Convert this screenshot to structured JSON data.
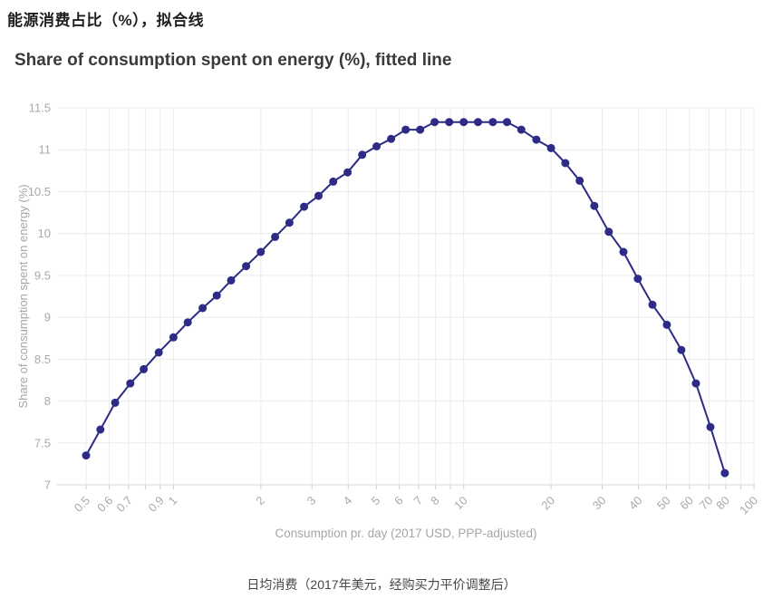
{
  "header": {
    "title_cn": "能源消费占比（%），拟合线",
    "title_en": "Share of consumption spent on energy (%), fitted line"
  },
  "footer": {
    "caption_cn": "日均消费（2017年美元，经购买力平价调整后）"
  },
  "chart_data": {
    "type": "line",
    "title": "Share of consumption spent on energy (%), fitted line",
    "xlabel": "Consumption pr. day (2017 USD, PPP-adjusted)",
    "ylabel": "Share of consumption spent on energy (%)",
    "x_scale": "log",
    "xlim": [
      0.5,
      100
    ],
    "ylim": [
      7,
      11.5
    ],
    "grid": true,
    "legend": "none",
    "marker": "circle",
    "x": [
      0.5,
      0.56,
      0.63,
      0.71,
      0.79,
      0.89,
      1,
      1.12,
      1.26,
      1.41,
      1.58,
      1.78,
      2,
      2.24,
      2.51,
      2.82,
      3.16,
      3.55,
      3.98,
      4.47,
      5.01,
      5.62,
      6.31,
      7.08,
      7.94,
      8.91,
      10,
      11.2,
      12.6,
      14.1,
      15.8,
      17.8,
      20,
      22.4,
      25.1,
      28.2,
      31.6,
      35.5,
      39.8,
      44.7,
      50.1,
      56.2,
      63.1,
      70.8,
      79.4
    ],
    "y": [
      7.35,
      7.66,
      7.98,
      8.21,
      8.38,
      8.58,
      8.76,
      8.94,
      9.11,
      9.26,
      9.44,
      9.61,
      9.78,
      9.96,
      10.13,
      10.32,
      10.45,
      10.62,
      10.73,
      10.94,
      11.04,
      11.13,
      11.24,
      11.24,
      11.33,
      11.33,
      11.33,
      11.33,
      11.33,
      11.33,
      11.24,
      11.12,
      11.02,
      10.84,
      10.63,
      10.33,
      10.02,
      9.78,
      9.46,
      9.15,
      8.91,
      8.61,
      8.21,
      7.69,
      7.14
    ],
    "x_ticks_labeled": [
      "0.5",
      "0.6",
      "0.7",
      "0.9",
      "1",
      "2",
      "3",
      "4",
      "5",
      "6",
      "7",
      "8",
      "10",
      "20",
      "30",
      "40",
      "50",
      "60",
      "70",
      "80",
      "100"
    ],
    "x_gridlines": [
      0.5,
      0.6,
      0.7,
      0.8,
      0.9,
      1,
      2,
      3,
      4,
      5,
      6,
      7,
      8,
      9,
      10,
      20,
      30,
      40,
      50,
      60,
      70,
      80,
      90,
      100
    ],
    "y_ticks": [
      "7",
      "7.5",
      "8",
      "8.5",
      "9",
      "9.5",
      "10",
      "10.5",
      "11",
      "11.5"
    ],
    "colors": {
      "line": "#2e2b87",
      "marker": "#2e2b87",
      "grid": "#ececec",
      "axis_line": "#d6d6d6",
      "tick_mark": "#cfcfcf",
      "tick_text": "#a9a9a9",
      "axis_title": "#a6a6a6"
    }
  }
}
